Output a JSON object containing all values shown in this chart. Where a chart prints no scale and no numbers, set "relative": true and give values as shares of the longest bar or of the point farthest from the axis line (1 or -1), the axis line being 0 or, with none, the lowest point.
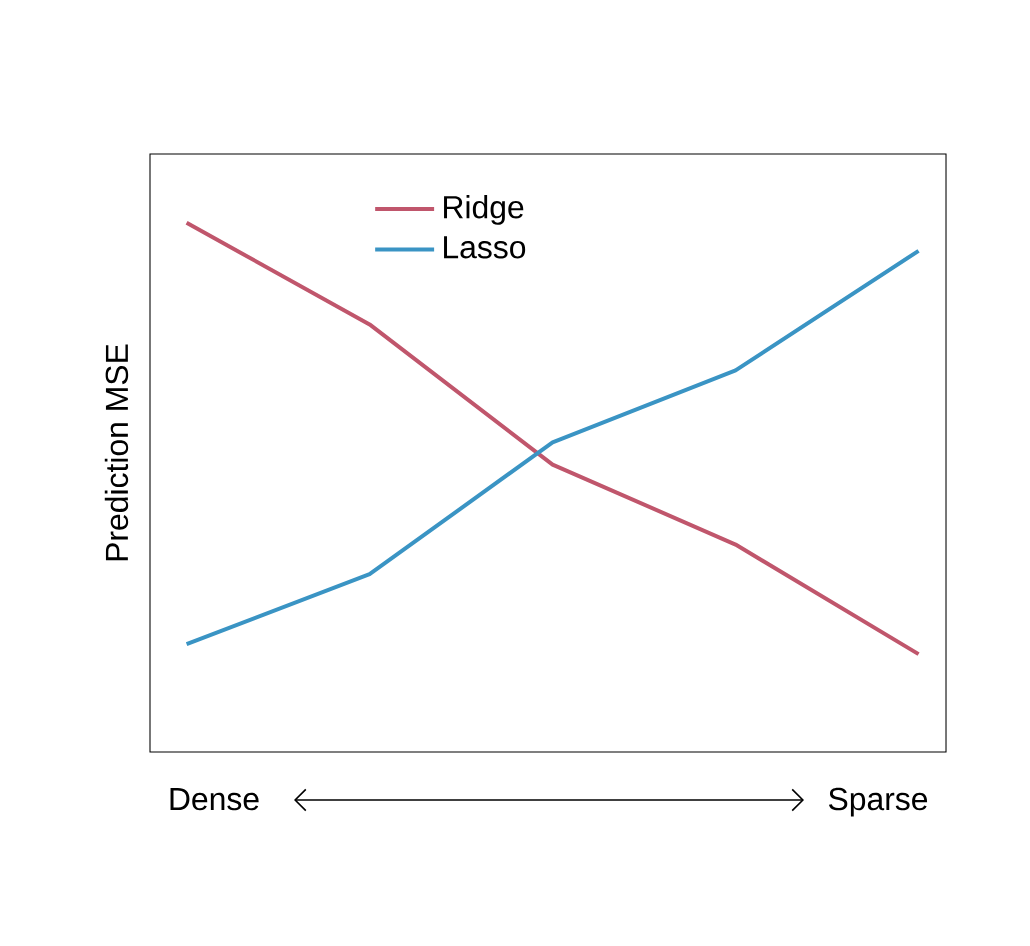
{
  "chart_data": {
    "type": "line",
    "relative": true,
    "ylabel": "Prediction MSE",
    "categories": [
      null,
      null,
      null,
      null,
      null
    ],
    "series": [
      {
        "name": "Ridge",
        "color": "#c0566c",
        "values": [
          1,
          0.808,
          0.543,
          0.392,
          0.185
        ]
      },
      {
        "name": "Lasso",
        "color": "#3a94c4",
        "values": [
          0.204,
          0.336,
          0.585,
          0.721,
          0.947
        ]
      }
    ],
    "annotations": [
      "Dense",
      "Sparse"
    ],
    "legend": "top",
    "marker": "none",
    "line_style": "solid"
  }
}
